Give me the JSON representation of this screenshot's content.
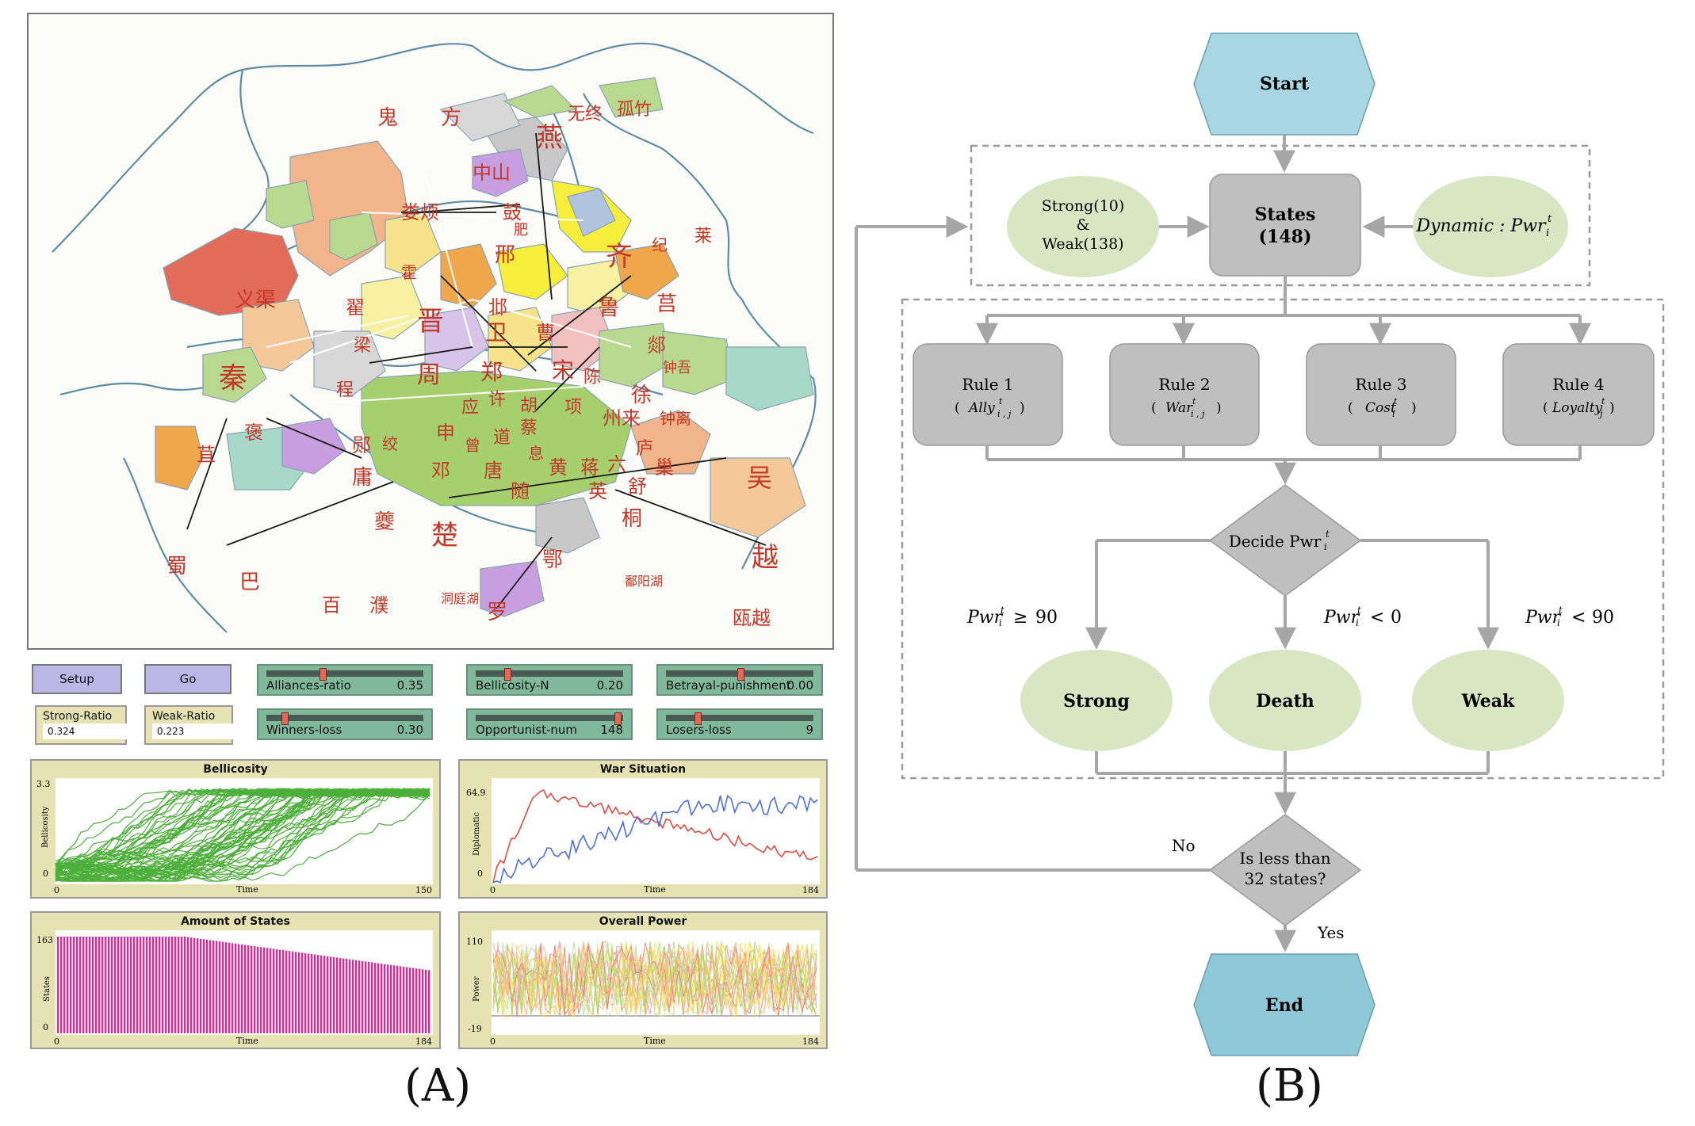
{
  "panel_labels": {
    "a": "(A)",
    "b": "(B)"
  },
  "map": {
    "regions": [
      "鬼",
      "方",
      "燕",
      "无终",
      "孤竹",
      "中山",
      "娄烦",
      "鼓",
      "肥",
      "邢",
      "齐",
      "纪",
      "莱",
      "卫",
      "霍",
      "义渠",
      "翟",
      "晋",
      "邶",
      "曹",
      "鲁",
      "莒",
      "梁",
      "郑",
      "宋",
      "郯",
      "秦",
      "程",
      "周",
      "陈",
      "徐",
      "钟吾",
      "应",
      "许",
      "胡",
      "项",
      "州来",
      "钟离",
      "蔡",
      "褒",
      "郧",
      "绞",
      "申",
      "曾",
      "道",
      "息",
      "蒋",
      "六",
      "庐",
      "巢",
      "吴",
      "苴",
      "庸",
      "邓",
      "唐",
      "黄",
      "英",
      "舒",
      "随",
      "夔",
      "楚",
      "桐",
      "越",
      "蜀",
      "巴",
      "鄂",
      "百",
      "濮",
      "洞庭湖",
      "罗",
      "鄱阳湖",
      "瓯越"
    ],
    "colors": {
      "water": "#6f9fb3",
      "land_outline": "#5e8da3",
      "label_red": "#c0392b"
    }
  },
  "controls": {
    "setup_label": "Setup",
    "go_label": "Go",
    "sliders": [
      {
        "label": "Alliances-ratio",
        "value": "0.35",
        "fraction": 0.35
      },
      {
        "label": "Bellicosity-N",
        "value": "0.20",
        "fraction": 0.2
      },
      {
        "label": "Betrayal-punishment",
        "value": "0.00",
        "fraction": 0.5
      },
      {
        "label": "Winners-loss",
        "value": "0.30",
        "fraction": 0.1
      },
      {
        "label": "Opportunist-num",
        "value": "148",
        "fraction": 0.98
      },
      {
        "label": "Losers-loss",
        "value": "9",
        "fraction": 0.2
      }
    ],
    "monitors": [
      {
        "label": "Strong-Ratio",
        "value": "0.324"
      },
      {
        "label": "Weak-Ratio",
        "value": "0.223"
      }
    ]
  },
  "plots": [
    {
      "title": "Bellicosity",
      "ylabel": "Bellicosity",
      "xlabel": "Time",
      "ymax": "3.3",
      "ymin": "0",
      "xmin": "0",
      "xmax": "150"
    },
    {
      "title": "War Situation",
      "ylabel": "Diplomatic",
      "xlabel": "Time",
      "ymax": "64.9",
      "ymin": "0",
      "xmin": "0",
      "xmax": "184"
    },
    {
      "title": "Amount of States",
      "ylabel": "States",
      "xlabel": "Time",
      "ymax": "163",
      "ymin": "0",
      "xmin": "0",
      "xmax": "184"
    },
    {
      "title": "Overall Power",
      "ylabel": "Power",
      "xlabel": "Time",
      "ymax": "110",
      "ymin": "-19",
      "xmin": "0",
      "xmax": "184"
    }
  ],
  "flowchart": {
    "start": "Start",
    "end": "End",
    "states_title": "States",
    "states_count": "(148)",
    "strong_weak_1": "Strong(10)",
    "strong_weak_2": "&",
    "strong_weak_3": "Weak(138)",
    "dynamic_label": "Dynamic : Pwr",
    "rules": [
      {
        "title": "Rule 1",
        "formula": "Ally",
        "sup": "t",
        "sub": "i , j"
      },
      {
        "title": "Rule 2",
        "formula": "War",
        "sup": "t",
        "sub": "i , j"
      },
      {
        "title": "Rule 3",
        "formula": "Cost",
        "sup": "t",
        "sub": "i"
      },
      {
        "title": "Rule 4",
        "formula": "Loyalty",
        "sup": "t",
        "sub": "j"
      }
    ],
    "decide_label": "Decide Pwr",
    "conditions": [
      {
        "left": "Pwr",
        "rel": "≥",
        "num": "90"
      },
      {
        "left": "Pwr",
        "rel": "<",
        "num": "0"
      },
      {
        "left": "Pwr",
        "rel": "<",
        "num": "90"
      }
    ],
    "outcomes": {
      "strong": "Strong",
      "death": "Death",
      "weak": "Weak"
    },
    "question_1": "Is less than",
    "question_2": "32 states?",
    "no_label": "No",
    "yes_label": "Yes",
    "colors": {
      "terminal": "#a9d6e3",
      "process": "#bfbfbf",
      "oval": "#d9e6c3",
      "arrow": "#a6a6a6"
    }
  }
}
